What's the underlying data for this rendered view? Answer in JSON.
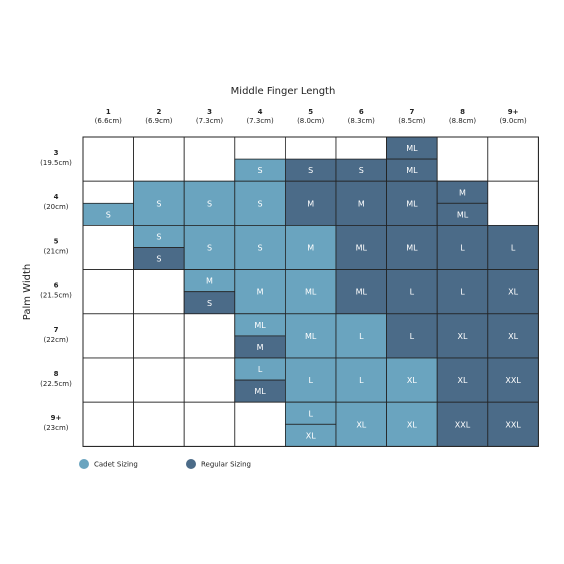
{
  "title": "Middle Finger Length",
  "row_axis_title": "Palm Width",
  "columns": [
    {
      "label": "1",
      "sub": "(6.6cm)"
    },
    {
      "label": "2",
      "sub": "(6.9cm)"
    },
    {
      "label": "3",
      "sub": "(7.3cm)"
    },
    {
      "label": "4",
      "sub": "(7.3cm)"
    },
    {
      "label": "5",
      "sub": "(8.0cm)"
    },
    {
      "label": "6",
      "sub": "(8.3cm)"
    },
    {
      "label": "7",
      "sub": "(8.5cm)"
    },
    {
      "label": "8",
      "sub": "(8.8cm)"
    },
    {
      "label": "9+",
      "sub": "(9.0cm)"
    }
  ],
  "legend": [
    {
      "label": "Cadet Sizing",
      "color": "#6aa4bf"
    },
    {
      "label": "Regular Sizing",
      "color": "#4b6b88"
    }
  ],
  "rows": [
    {
      "label": "3",
      "sub": "(19.5cm)",
      "cells": [
        null,
        null,
        null,
        [
          null,
          {
            "label": "S",
            "color": "#6aa4bf"
          }
        ],
        [
          null,
          {
            "label": "S",
            "color": "#4b6b88"
          }
        ],
        [
          null,
          {
            "label": "S",
            "color": "#4b6b88"
          }
        ],
        [
          {
            "label": "ML",
            "color": "#4b6b88"
          },
          {
            "label": "ML",
            "color": "#4b6b88"
          }
        ],
        null,
        null
      ]
    },
    {
      "label": "4",
      "sub": "(20cm)",
      "cells": [
        [
          null,
          {
            "label": "S",
            "color": "#6aa4bf"
          }
        ],
        {
          "label": "S",
          "color": "#6aa4bf"
        },
        {
          "label": "S",
          "color": "#6aa4bf"
        },
        {
          "label": "S",
          "color": "#6aa4bf"
        },
        {
          "label": "M",
          "color": "#4b6b88"
        },
        {
          "label": "M",
          "color": "#4b6b88"
        },
        {
          "label": "ML",
          "color": "#4b6b88"
        },
        [
          {
            "label": "M",
            "color": "#4b6b88"
          },
          {
            "label": "ML",
            "color": "#4b6b88"
          }
        ],
        null
      ]
    },
    {
      "label": "5",
      "sub": "(21cm)",
      "cells": [
        null,
        [
          {
            "label": "S",
            "color": "#6aa4bf"
          },
          {
            "label": "S",
            "color": "#4b6b88"
          }
        ],
        {
          "label": "S",
          "color": "#6aa4bf"
        },
        {
          "label": "S",
          "color": "#6aa4bf"
        },
        {
          "label": "M",
          "color": "#6aa4bf"
        },
        {
          "label": "ML",
          "color": "#4b6b88"
        },
        {
          "label": "ML",
          "color": "#4b6b88"
        },
        {
          "label": "L",
          "color": "#4b6b88"
        },
        {
          "label": "L",
          "color": "#4b6b88"
        }
      ]
    },
    {
      "label": "6",
      "sub": "(21.5cm)",
      "cells": [
        null,
        null,
        [
          {
            "label": "M",
            "color": "#6aa4bf"
          },
          {
            "label": "S",
            "color": "#4b6b88"
          }
        ],
        {
          "label": "M",
          "color": "#6aa4bf"
        },
        {
          "label": "ML",
          "color": "#6aa4bf"
        },
        {
          "label": "ML",
          "color": "#4b6b88"
        },
        {
          "label": "L",
          "color": "#4b6b88"
        },
        {
          "label": "L",
          "color": "#4b6b88"
        },
        {
          "label": "XL",
          "color": "#4b6b88"
        }
      ]
    },
    {
      "label": "7",
      "sub": "(22cm)",
      "cells": [
        null,
        null,
        null,
        [
          {
            "label": "ML",
            "color": "#6aa4bf"
          },
          {
            "label": "M",
            "color": "#4b6b88"
          }
        ],
        {
          "label": "ML",
          "color": "#6aa4bf"
        },
        {
          "label": "L",
          "color": "#6aa4bf"
        },
        {
          "label": "L",
          "color": "#4b6b88"
        },
        {
          "label": "XL",
          "color": "#4b6b88"
        },
        {
          "label": "XL",
          "color": "#4b6b88"
        }
      ]
    },
    {
      "label": "8",
      "sub": "(22.5cm)",
      "cells": [
        null,
        null,
        null,
        [
          {
            "label": "L",
            "color": "#6aa4bf"
          },
          {
            "label": "ML",
            "color": "#4b6b88"
          }
        ],
        {
          "label": "L",
          "color": "#6aa4bf"
        },
        {
          "label": "L",
          "color": "#6aa4bf"
        },
        {
          "label": "XL",
          "color": "#6aa4bf"
        },
        {
          "label": "XL",
          "color": "#4b6b88"
        },
        {
          "label": "XXL",
          "color": "#4b6b88"
        }
      ]
    },
    {
      "label": "9+",
      "sub": "(23cm)",
      "cells": [
        null,
        null,
        null,
        null,
        [
          {
            "label": "L",
            "color": "#6aa4bf"
          },
          {
            "label": "XL",
            "color": "#6aa4bf"
          }
        ],
        {
          "label": "XL",
          "color": "#6aa4bf"
        },
        {
          "label": "XL",
          "color": "#6aa4bf"
        },
        {
          "label": "XXL",
          "color": "#4b6b88"
        },
        {
          "label": "XXL",
          "color": "#4b6b88"
        }
      ]
    }
  ]
}
